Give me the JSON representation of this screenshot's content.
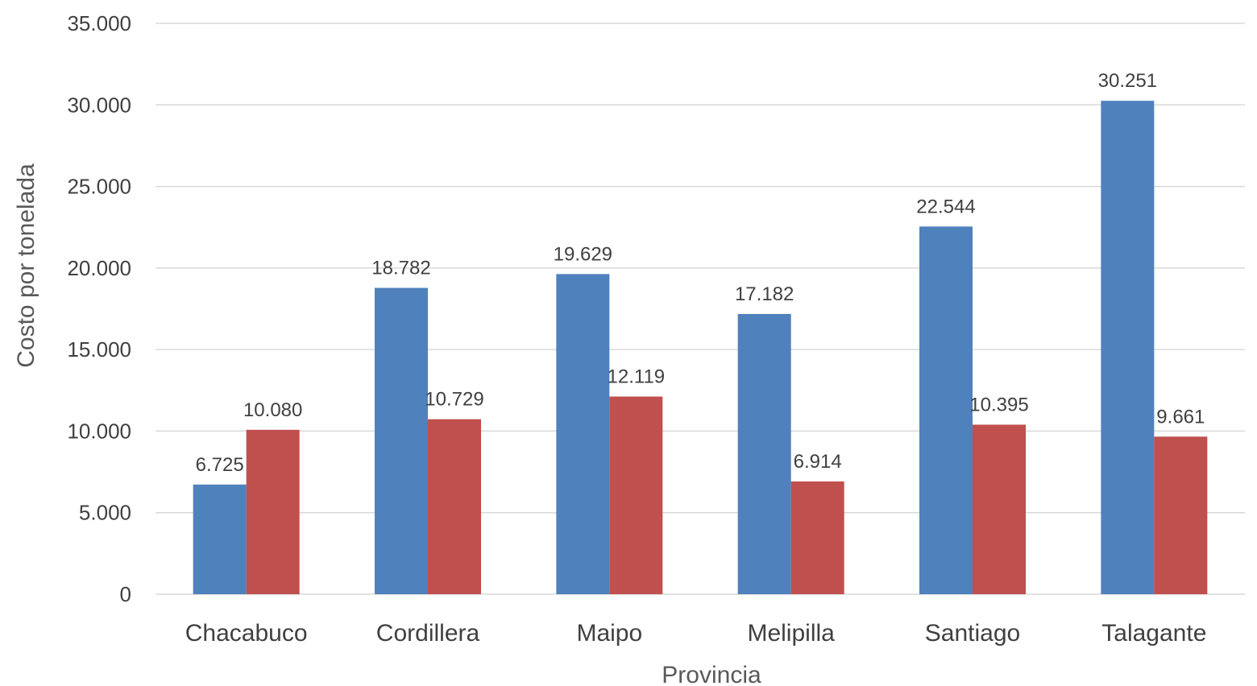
{
  "chart_data": {
    "type": "bar",
    "title": "",
    "xlabel": "Provincia",
    "ylabel": "Costo por tonelada",
    "ylim": [
      0,
      35000
    ],
    "yticks": [
      0,
      5000,
      10000,
      15000,
      20000,
      25000,
      30000,
      35000
    ],
    "ytick_labels": [
      "0",
      "5.000",
      "10.000",
      "15.000",
      "20.000",
      "25.000",
      "30.000",
      "35.000"
    ],
    "grid": true,
    "legend": "none",
    "categories": [
      "Chacabuco",
      "Cordillera",
      "Maipo",
      "Melipilla",
      "Santiago",
      "Talagante"
    ],
    "series": [
      {
        "color": "#4f81bd",
        "values": [
          6725,
          18782,
          19629,
          17182,
          22544,
          30251
        ],
        "labels": [
          "6.725",
          "18.782",
          "19.629",
          "17.182",
          "22.544",
          "30.251"
        ]
      },
      {
        "color": "#c0504d",
        "values": [
          10080,
          10729,
          12119,
          6914,
          10395,
          9661
        ],
        "labels": [
          "10.080",
          "10.729",
          "12.119",
          "6.914",
          "10.395",
          "9.661"
        ]
      }
    ]
  }
}
